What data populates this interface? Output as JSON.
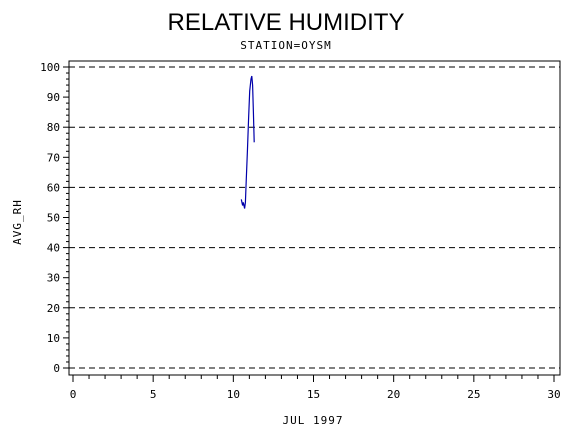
{
  "chart_data": {
    "type": "line",
    "title": "RELATIVE HUMIDITY",
    "subtitle": "STATION=OYSM",
    "xlabel": "JUL 1997",
    "ylabel": "AVG_RH",
    "xlim": [
      0,
      30
    ],
    "ylim": [
      0,
      100
    ],
    "x_ticks": [
      0,
      5,
      10,
      15,
      20,
      25,
      30
    ],
    "y_ticks": [
      0,
      10,
      20,
      30,
      40,
      50,
      60,
      70,
      80,
      90,
      100
    ],
    "gridlines_y": [
      0,
      20,
      40,
      60,
      80,
      100
    ],
    "grid": "dashed horizontal",
    "series": [
      {
        "color": "#0000aa",
        "x": [
          10.5,
          10.58,
          10.62,
          10.7,
          10.75,
          10.8,
          10.88,
          10.95,
          11.02,
          11.1,
          11.15,
          11.2,
          11.25,
          11.3
        ],
        "y": [
          56,
          54,
          55,
          53,
          55,
          62,
          72,
          83,
          92,
          96,
          97,
          94,
          85,
          75
        ]
      }
    ]
  }
}
